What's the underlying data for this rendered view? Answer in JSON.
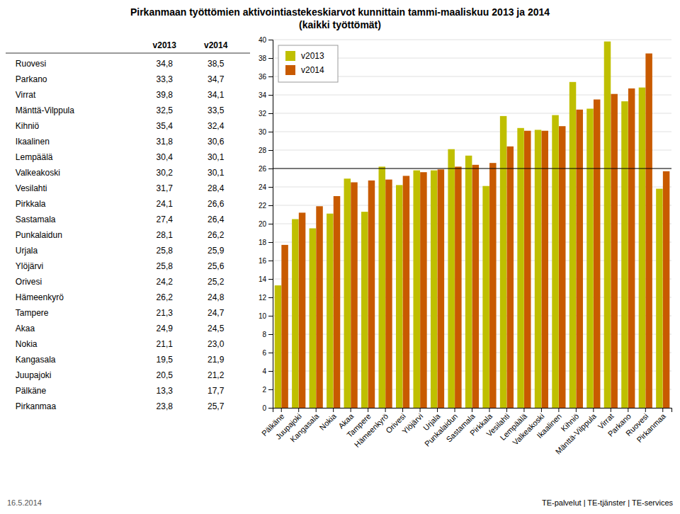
{
  "chart_data": [
    {
      "type": "bar",
      "title": "Pirkanmaan työttömien aktivointiastekeskiarvot kunnittain tammi-maaliskuu 2013 ja 2014",
      "subtitle": "(kaikki työttömät)",
      "categories": [
        "Pälkäne",
        "Juupajoki",
        "Kangasala",
        "Nokia",
        "Akaa",
        "Tampere",
        "Hämeenkyrö",
        "Orivesi",
        "Ylöjärvi",
        "Urjala",
        "Punkalaidun",
        "Sastamala",
        "Pirkkala",
        "Vesilahti",
        "Lempäälä",
        "Valkeakoski",
        "Ikaalinen",
        "Kihniö",
        "Mänttä-Vilppula",
        "Virrat",
        "Parkano",
        "Ruovesi",
        "Pirkanmaa"
      ],
      "series": [
        {
          "name": "v2013",
          "color": "#BFBF00",
          "values": [
            13.3,
            20.5,
            19.5,
            21.1,
            24.9,
            21.3,
            26.2,
            24.2,
            25.8,
            25.8,
            28.1,
            27.4,
            24.1,
            31.7,
            30.4,
            30.2,
            31.8,
            35.4,
            32.5,
            39.8,
            33.3,
            34.8,
            23.8
          ]
        },
        {
          "name": "v2014",
          "color": "#C85A00",
          "values": [
            17.7,
            21.2,
            21.9,
            23.0,
            24.5,
            24.7,
            24.8,
            25.2,
            25.6,
            25.9,
            26.2,
            26.4,
            26.6,
            28.4,
            30.1,
            30.1,
            30.6,
            32.4,
            33.5,
            34.1,
            34.7,
            38.5,
            25.7
          ]
        }
      ],
      "reference_line": 26,
      "ylim": [
        0,
        40
      ],
      "yticks": [
        0,
        2,
        4,
        6,
        8,
        10,
        12,
        14,
        16,
        18,
        20,
        22,
        24,
        26,
        28,
        30,
        32,
        34,
        36,
        38,
        40
      ],
      "grid": true,
      "legend": "upper left",
      "annotations": [
        "16.5.2014",
        "TE-palvelut | TE-tjänster | TE-services"
      ]
    },
    {
      "type": "table",
      "categories": [
        "Ruovesi",
        "Parkano",
        "Virrat",
        "Mänttä-Vilppula",
        "Kihniö",
        "Ikaalinen",
        "Lempäälä",
        "Valkeakoski",
        "Vesilahti",
        "Pirkkala",
        "Sastamala",
        "Punkalaidun",
        "Urjala",
        "Ylöjärvi",
        "Orivesi",
        "Hämeenkyrö",
        "Tampere",
        "Akaa",
        "Nokia",
        "Kangasala",
        "Juupajoki",
        "Pälkäne",
        "Pirkanmaa"
      ],
      "series": [
        {
          "name": "v2013",
          "values": [
            34.8,
            33.3,
            39.8,
            32.5,
            35.4,
            31.8,
            30.4,
            30.2,
            31.7,
            24.1,
            27.4,
            28.1,
            25.8,
            25.8,
            24.2,
            26.2,
            21.3,
            24.9,
            21.1,
            19.5,
            20.5,
            13.3,
            23.8
          ],
          "value_labels": [
            "34,8",
            "33,3",
            "39,8",
            "32,5",
            "35,4",
            "31,8",
            "30,4",
            "30,2",
            "31,7",
            "24,1",
            "27,4",
            "28,1",
            "25,8",
            "25,8",
            "24,2",
            "26,2",
            "21,3",
            "24,9",
            "21,1",
            "19,5",
            "20,5",
            "13,3",
            "23,8"
          ]
        },
        {
          "name": "v2014",
          "values": [
            38.5,
            34.7,
            34.1,
            33.5,
            32.4,
            30.6,
            30.1,
            30.1,
            28.4,
            26.6,
            26.4,
            26.2,
            25.9,
            25.6,
            25.2,
            24.8,
            24.7,
            24.5,
            23.0,
            21.9,
            21.2,
            17.7,
            25.7
          ],
          "value_labels": [
            "38,5",
            "34,7",
            "34,1",
            "33,5",
            "32,4",
            "30,6",
            "30,1",
            "30,1",
            "28,4",
            "26,6",
            "26,4",
            "26,2",
            "25,9",
            "25,6",
            "25,2",
            "24,8",
            "24,7",
            "24,5",
            "23,0",
            "21,9",
            "21,2",
            "17,7",
            "25,7"
          ]
        }
      ]
    }
  ]
}
